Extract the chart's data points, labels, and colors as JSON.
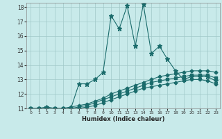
{
  "xlabel": "Humidex (Indice chaleur)",
  "ylabel": "",
  "background_color": "#c8eaea",
  "grid_color": "#a0c8c8",
  "line_color": "#1a6b6b",
  "xlim": [
    -0.5,
    23.5
  ],
  "ylim": [
    11,
    18.3
  ],
  "yticks": [
    11,
    12,
    13,
    14,
    15,
    16,
    17,
    18
  ],
  "xticks": [
    0,
    1,
    2,
    3,
    4,
    5,
    6,
    7,
    8,
    9,
    10,
    11,
    12,
    13,
    14,
    15,
    16,
    17,
    18,
    19,
    20,
    21,
    22,
    23
  ],
  "series": [
    {
      "x": [
        0,
        1,
        2,
        3,
        4,
        5,
        6,
        7,
        8,
        9,
        10,
        11,
        12,
        13,
        14,
        15,
        16,
        17,
        18,
        19,
        20,
        21,
        22,
        23
      ],
      "y": [
        11,
        11,
        11.1,
        11,
        11,
        11,
        12.7,
        12.7,
        13.0,
        13.5,
        17.4,
        16.5,
        18.1,
        15.3,
        18.2,
        14.8,
        15.3,
        14.4,
        13.6,
        13.0,
        13.2,
        13.2,
        13.2,
        12.9
      ]
    },
    {
      "x": [
        0,
        1,
        2,
        3,
        4,
        5,
        6,
        7,
        8,
        9,
        10,
        11,
        12,
        13,
        14,
        15,
        16,
        17,
        18,
        19,
        20,
        21,
        22,
        23
      ],
      "y": [
        11,
        11,
        11,
        11,
        11,
        11.1,
        11.2,
        11.3,
        11.5,
        11.7,
        12.0,
        12.2,
        12.4,
        12.6,
        12.8,
        13.0,
        13.2,
        13.3,
        13.4,
        13.5,
        13.6,
        13.6,
        13.6,
        13.5
      ]
    },
    {
      "x": [
        0,
        1,
        2,
        3,
        4,
        5,
        6,
        7,
        8,
        9,
        10,
        11,
        12,
        13,
        14,
        15,
        16,
        17,
        18,
        19,
        20,
        21,
        22,
        23
      ],
      "y": [
        11,
        11,
        11,
        11,
        11,
        11,
        11.1,
        11.2,
        11.4,
        11.6,
        11.8,
        12.0,
        12.2,
        12.4,
        12.6,
        12.8,
        12.9,
        13.0,
        13.1,
        13.2,
        13.3,
        13.3,
        13.3,
        13.1
      ]
    },
    {
      "x": [
        0,
        1,
        2,
        3,
        4,
        5,
        6,
        7,
        8,
        9,
        10,
        11,
        12,
        13,
        14,
        15,
        16,
        17,
        18,
        19,
        20,
        21,
        22,
        23
      ],
      "y": [
        11,
        11,
        11,
        11,
        11,
        11,
        11,
        11.1,
        11.2,
        11.4,
        11.6,
        11.8,
        12.0,
        12.2,
        12.4,
        12.5,
        12.6,
        12.7,
        12.8,
        12.9,
        13.0,
        13.0,
        12.9,
        12.7
      ]
    }
  ]
}
